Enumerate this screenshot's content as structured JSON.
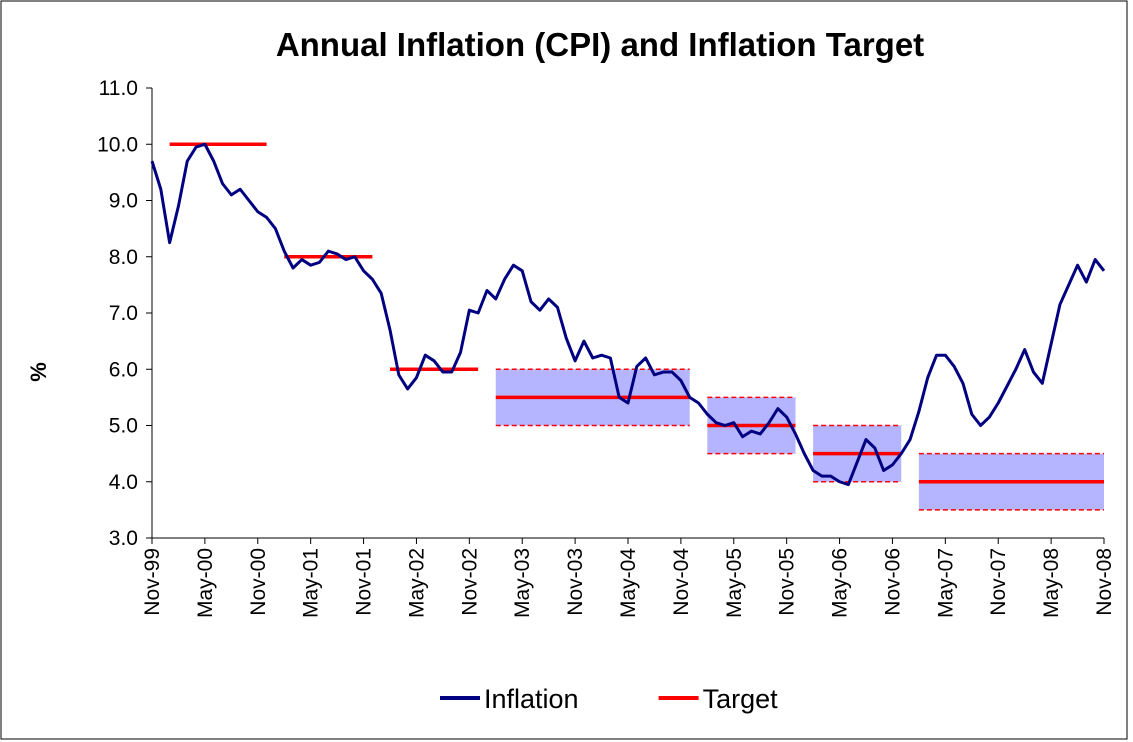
{
  "chart_data": {
    "type": "line",
    "title": "Annual Inflation (CPI) and Inflation Target",
    "y_label": "%",
    "categories": [
      "Nov-99",
      null,
      null,
      null,
      null,
      null,
      "May-00",
      null,
      null,
      null,
      null,
      null,
      "Nov-00",
      null,
      null,
      null,
      null,
      null,
      "May-01",
      null,
      null,
      null,
      null,
      null,
      "Nov-01",
      null,
      null,
      null,
      null,
      null,
      "May-02",
      null,
      null,
      null,
      null,
      null,
      "Nov-02",
      null,
      null,
      null,
      null,
      null,
      "May-03",
      null,
      null,
      null,
      null,
      null,
      "Nov-03",
      null,
      null,
      null,
      null,
      null,
      "May-04",
      null,
      null,
      null,
      null,
      null,
      "Nov-04",
      null,
      null,
      null,
      null,
      null,
      "May-05",
      null,
      null,
      null,
      null,
      null,
      "Nov-05",
      null,
      null,
      null,
      null,
      null,
      "May-06",
      null,
      null,
      null,
      null,
      null,
      "Nov-06",
      null,
      null,
      null,
      null,
      null,
      "May-07",
      null,
      null,
      null,
      null,
      null,
      "Nov-07",
      null,
      null,
      null,
      null,
      null,
      "May-08",
      null,
      null,
      null,
      null,
      null,
      "Nov-08"
    ],
    "series": [
      {
        "name": "Inflation",
        "color": "#000080",
        "width": 3,
        "values": [
          9.7,
          9.2,
          8.25,
          8.9,
          9.7,
          9.95,
          10,
          9.7,
          9.3,
          9.1,
          9.2,
          9.0,
          8.8,
          8.7,
          8.5,
          8.1,
          7.8,
          7.95,
          7.85,
          7.9,
          8.1,
          8.05,
          7.95,
          8.0,
          7.75,
          7.6,
          7.35,
          6.7,
          5.9,
          5.65,
          5.85,
          6.25,
          6.15,
          5.95,
          5.95,
          6.3,
          7.05,
          7.0,
          7.4,
          7.25,
          7.6,
          7.85,
          7.75,
          7.2,
          7.05,
          7.25,
          7.1,
          6.55,
          6.15,
          6.5,
          6.2,
          6.25,
          6.2,
          5.5,
          5.4,
          6.05,
          6.2,
          5.9,
          5.95,
          5.95,
          5.8,
          5.5,
          5.4,
          5.2,
          5.05,
          5.0,
          5.05,
          4.8,
          4.9,
          4.85,
          5.05,
          5.3,
          5.15,
          4.85,
          4.5,
          4.2,
          4.1,
          4.1,
          4.0,
          3.95,
          4.35,
          4.75,
          4.6,
          4.2,
          4.3,
          4.5,
          4.75,
          5.25,
          5.85,
          6.25,
          6.25,
          6.05,
          5.75,
          5.2,
          5.0,
          5.15,
          5.4,
          5.7,
          6.0,
          6.35,
          5.95,
          5.75,
          6.45,
          7.15,
          7.5,
          7.85,
          7.55,
          7.95,
          7.75
        ]
      },
      {
        "name": "Target",
        "color": "#ff0000",
        "width": 3.5,
        "values": [
          null,
          null,
          10,
          10,
          10,
          10,
          10,
          10,
          10,
          10,
          10,
          10,
          10,
          10,
          null,
          8,
          8,
          8,
          8,
          8,
          8,
          8,
          8,
          8,
          8,
          8,
          null,
          6,
          6,
          6,
          6,
          6,
          6,
          6,
          6,
          6,
          6,
          6,
          null,
          5.5,
          5.5,
          5.5,
          5.5,
          5.5,
          5.5,
          5.5,
          5.5,
          5.5,
          5.5,
          5.5,
          5.5,
          5.5,
          5.5,
          5.5,
          5.5,
          5.5,
          5.5,
          5.5,
          5.5,
          5.5,
          5.5,
          5.5,
          null,
          5,
          5,
          5,
          5,
          5,
          5,
          5,
          5,
          5,
          5,
          5,
          null,
          4.5,
          4.5,
          4.5,
          4.5,
          4.5,
          4.5,
          4.5,
          4.5,
          4.5,
          4.5,
          4.5,
          null,
          4,
          4,
          4,
          4,
          4,
          4,
          4,
          4,
          4,
          4,
          4,
          4,
          4,
          4,
          4,
          4,
          4,
          4,
          4,
          4,
          4,
          4
        ]
      }
    ],
    "bands": {
      "color": "#ff0000",
      "fill": "#b4b4ff",
      "upper": [
        null,
        null,
        null,
        null,
        null,
        null,
        null,
        null,
        null,
        null,
        null,
        null,
        null,
        null,
        null,
        null,
        null,
        null,
        null,
        null,
        null,
        null,
        null,
        null,
        null,
        null,
        null,
        null,
        null,
        null,
        null,
        null,
        null,
        null,
        null,
        null,
        null,
        null,
        null,
        6,
        6,
        6,
        6,
        6,
        6,
        6,
        6,
        6,
        6,
        6,
        6,
        6,
        6,
        6,
        6,
        6,
        6,
        6,
        6,
        6,
        6,
        6,
        null,
        5.5,
        5.5,
        5.5,
        5.5,
        5.5,
        5.5,
        5.5,
        5.5,
        5.5,
        5.5,
        5.5,
        null,
        5,
        5,
        5,
        5,
        5,
        5,
        5,
        5,
        5,
        5,
        5,
        null,
        4.5,
        4.5,
        4.5,
        4.5,
        4.5,
        4.5,
        4.5,
        4.5,
        4.5,
        4.5,
        4.5,
        4.5,
        4.5,
        4.5,
        4.5,
        4.5,
        4.5,
        4.5,
        4.5,
        4.5,
        4.5,
        4.5
      ],
      "lower": [
        null,
        null,
        null,
        null,
        null,
        null,
        null,
        null,
        null,
        null,
        null,
        null,
        null,
        null,
        null,
        null,
        null,
        null,
        null,
        null,
        null,
        null,
        null,
        null,
        null,
        null,
        null,
        null,
        null,
        null,
        null,
        null,
        null,
        null,
        null,
        null,
        null,
        null,
        null,
        5,
        5,
        5,
        5,
        5,
        5,
        5,
        5,
        5,
        5,
        5,
        5,
        5,
        5,
        5,
        5,
        5,
        5,
        5,
        5,
        5,
        5,
        5,
        null,
        4.5,
        4.5,
        4.5,
        4.5,
        4.5,
        4.5,
        4.5,
        4.5,
        4.5,
        4.5,
        4.5,
        null,
        4,
        4,
        4,
        4,
        4,
        4,
        4,
        4,
        4,
        4,
        4,
        null,
        3.5,
        3.5,
        3.5,
        3.5,
        3.5,
        3.5,
        3.5,
        3.5,
        3.5,
        3.5,
        3.5,
        3.5,
        3.5,
        3.5,
        3.5,
        3.5,
        3.5,
        3.5,
        3.5,
        3.5,
        3.5,
        3.5
      ]
    },
    "ylim": [
      3,
      11
    ],
    "yticks": [
      {
        "value": 3,
        "label": "3.0"
      },
      {
        "value": 4,
        "label": "4.0"
      },
      {
        "value": 5,
        "label": "5.0"
      },
      {
        "value": 6,
        "label": "6.0"
      },
      {
        "value": 7,
        "label": "7.0"
      },
      {
        "value": 8,
        "label": "8.0"
      },
      {
        "value": 9,
        "label": "9.0"
      },
      {
        "value": 10,
        "label": "10.0"
      },
      {
        "value": 11,
        "label": "11.0"
      }
    ],
    "grid": false,
    "legend": "bottom"
  }
}
